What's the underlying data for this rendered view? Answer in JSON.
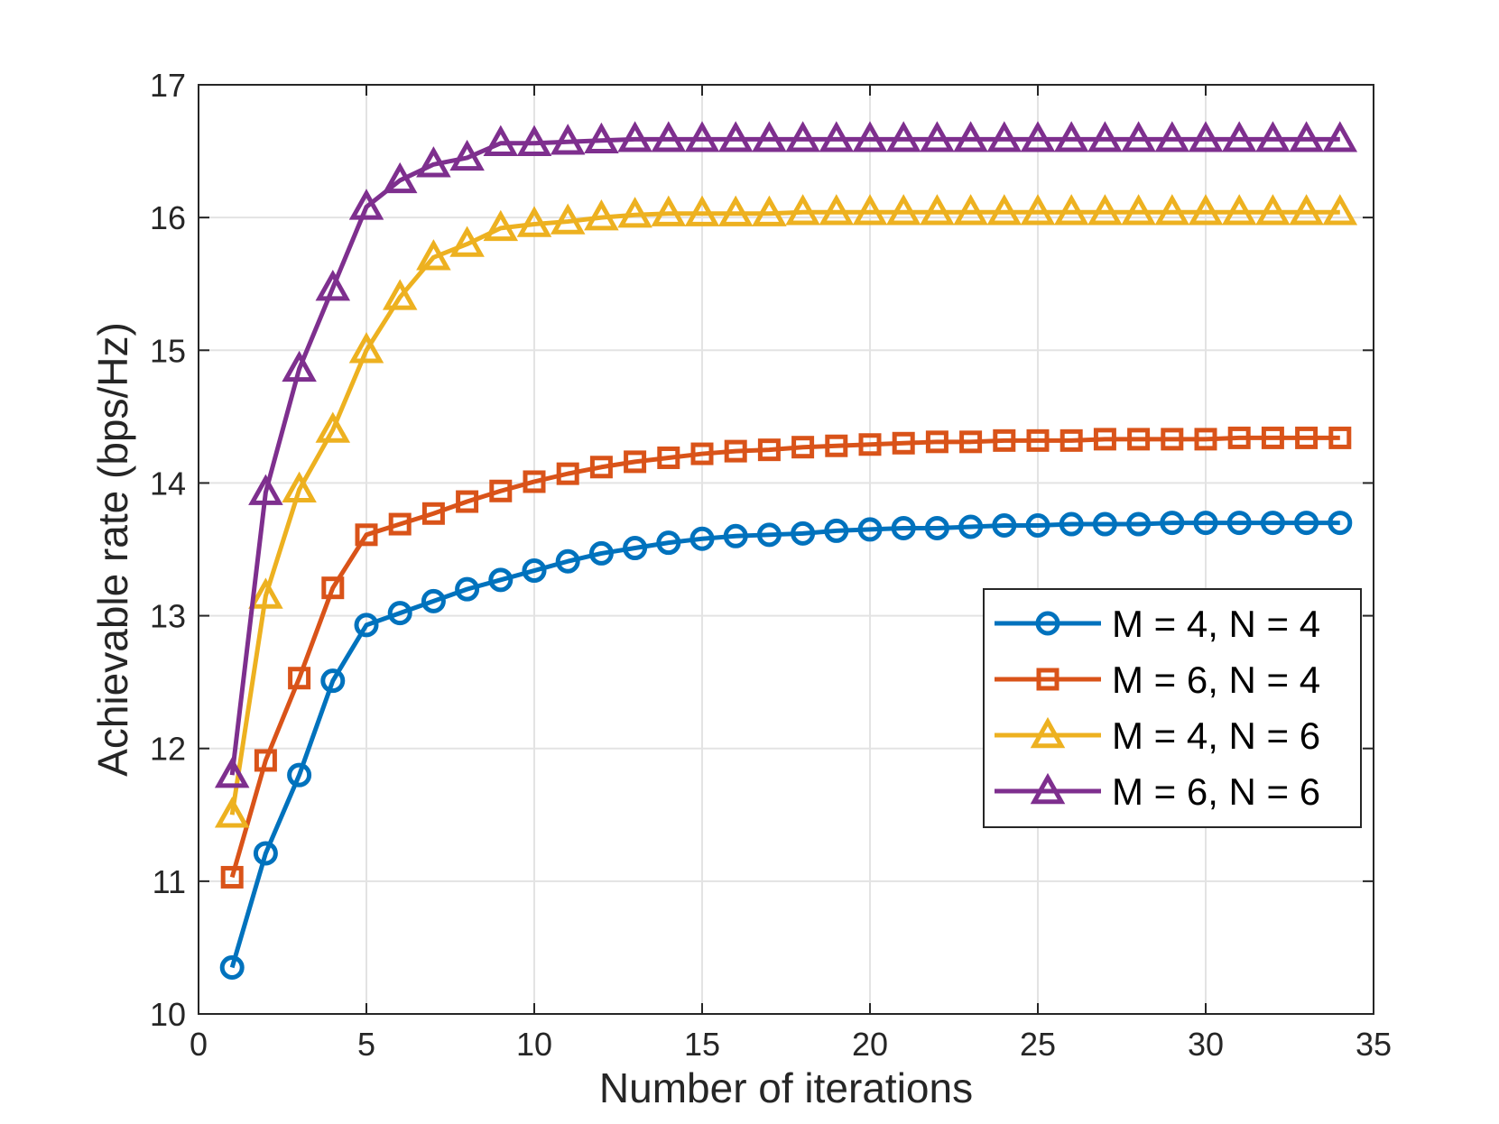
{
  "chart_data": {
    "type": "line",
    "xlabel": "Number of iterations",
    "ylabel": "Achievable rate (bps/Hz)",
    "xlim": [
      0,
      35
    ],
    "ylim": [
      10,
      17
    ],
    "xticks": [
      0,
      5,
      10,
      15,
      20,
      25,
      30,
      35
    ],
    "yticks": [
      10,
      11,
      12,
      13,
      14,
      15,
      16,
      17
    ],
    "grid": true,
    "legend_position": "right",
    "x": [
      1,
      2,
      3,
      4,
      5,
      6,
      7,
      8,
      9,
      10,
      11,
      12,
      13,
      14,
      15,
      16,
      17,
      18,
      19,
      20,
      21,
      22,
      23,
      24,
      25,
      26,
      27,
      28,
      29,
      30,
      31,
      32,
      33,
      34
    ],
    "series": [
      {
        "name": "M = 4, N = 4",
        "color": "#0072BD",
        "marker": "circle",
        "values": [
          10.35,
          11.21,
          11.8,
          12.51,
          12.93,
          13.02,
          13.11,
          13.2,
          13.27,
          13.34,
          13.41,
          13.47,
          13.51,
          13.55,
          13.58,
          13.6,
          13.61,
          13.62,
          13.64,
          13.65,
          13.66,
          13.66,
          13.67,
          13.68,
          13.68,
          13.69,
          13.69,
          13.69,
          13.7,
          13.7,
          13.7,
          13.7,
          13.7,
          13.7
        ]
      },
      {
        "name": "M = 6, N = 4",
        "color": "#D95319",
        "marker": "square",
        "values": [
          11.03,
          11.91,
          12.53,
          13.21,
          13.61,
          13.69,
          13.77,
          13.86,
          13.94,
          14.01,
          14.07,
          14.12,
          14.16,
          14.19,
          14.22,
          14.24,
          14.25,
          14.27,
          14.28,
          14.29,
          14.3,
          14.31,
          14.31,
          14.32,
          14.32,
          14.32,
          14.33,
          14.33,
          14.33,
          14.33,
          14.34,
          14.34,
          14.34,
          14.34
        ]
      },
      {
        "name": "M = 4, N = 6",
        "color": "#EDB120",
        "marker": "triangle",
        "values": [
          11.5,
          13.15,
          13.95,
          14.4,
          15.0,
          15.4,
          15.7,
          15.8,
          15.92,
          15.95,
          15.97,
          16.0,
          16.02,
          16.03,
          16.03,
          16.03,
          16.03,
          16.04,
          16.04,
          16.04,
          16.04,
          16.04,
          16.04,
          16.04,
          16.04,
          16.04,
          16.04,
          16.04,
          16.04,
          16.04,
          16.04,
          16.04,
          16.04,
          16.04
        ]
      },
      {
        "name": "M = 6, N = 6",
        "color": "#7E2F8E",
        "marker": "triangle",
        "values": [
          11.8,
          13.93,
          14.86,
          15.47,
          16.08,
          16.28,
          16.4,
          16.45,
          16.56,
          16.56,
          16.57,
          16.58,
          16.59,
          16.59,
          16.59,
          16.59,
          16.59,
          16.59,
          16.59,
          16.59,
          16.59,
          16.59,
          16.59,
          16.59,
          16.59,
          16.59,
          16.59,
          16.59,
          16.59,
          16.59,
          16.59,
          16.59,
          16.59,
          16.59
        ]
      }
    ]
  }
}
